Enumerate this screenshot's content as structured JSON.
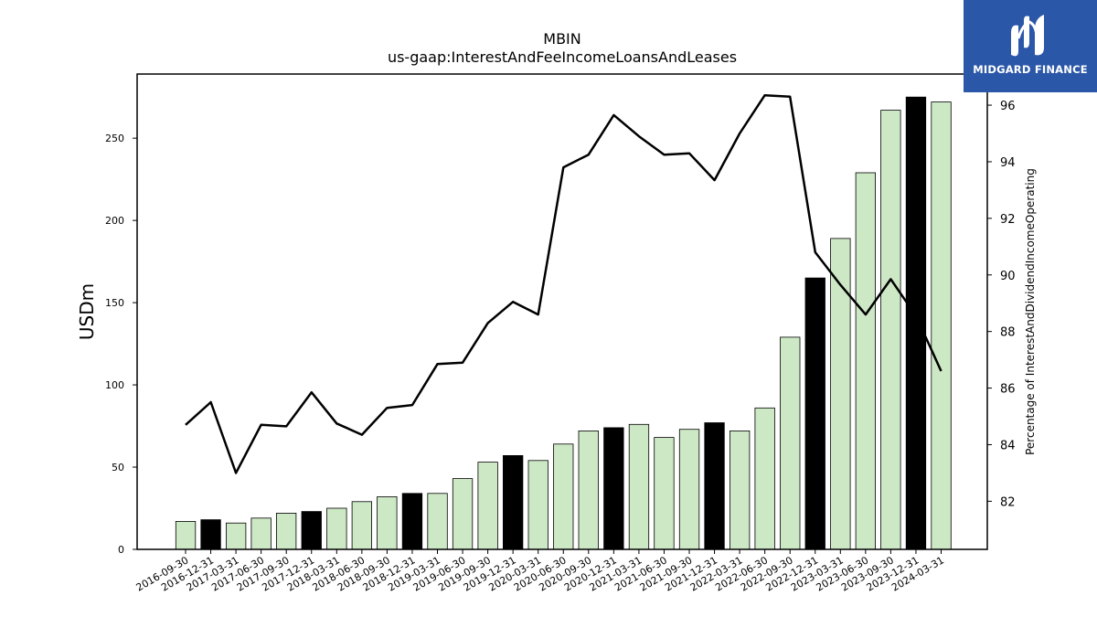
{
  "chart_data": {
    "type": "bar",
    "title": "MBIN",
    "subtitle": "us-gaap:InterestAndFeeIncomeLoansAndLeases",
    "ylabel": "USDm",
    "y2label": "Percentage of InterestAndDividendIncomeOperating",
    "ylim": [
      0,
      289
    ],
    "y2lim": [
      80.3,
      97.1
    ],
    "yticks": [
      0,
      50,
      100,
      150,
      200,
      250
    ],
    "y2ticks": [
      82,
      84,
      86,
      88,
      90,
      92,
      94,
      96
    ],
    "grid": false,
    "categories": [
      "2016-09-30",
      "2016-12-31",
      "2017-03-31",
      "2017-06-30",
      "2017-09-30",
      "2017-12-31",
      "2018-03-31",
      "2018-06-30",
      "2018-09-30",
      "2018-12-31",
      "2019-03-31",
      "2019-06-30",
      "2019-09-30",
      "2019-12-31",
      "2020-03-31",
      "2020-06-30",
      "2020-09-30",
      "2020-12-31",
      "2021-03-31",
      "2021-06-30",
      "2021-09-30",
      "2021-12-31",
      "2022-03-31",
      "2022-06-30",
      "2022-09-30",
      "2022-12-31",
      "2023-03-31",
      "2023-06-30",
      "2023-09-30",
      "2023-12-31",
      "2024-03-31"
    ],
    "series": [
      {
        "kind": "bar",
        "values": [
          17,
          18,
          16,
          19,
          22,
          23,
          25,
          29,
          32,
          34,
          34,
          43,
          53,
          57,
          54,
          64,
          72,
          74,
          76,
          68,
          73,
          77,
          72,
          86,
          129,
          165,
          189,
          229,
          267,
          275,
          272
        ],
        "colors": [
          "#cde8c5",
          "#000000",
          "#cde8c5",
          "#cde8c5",
          "#cde8c5",
          "#000000",
          "#cde8c5",
          "#cde8c5",
          "#cde8c5",
          "#000000",
          "#cde8c5",
          "#cde8c5",
          "#cde8c5",
          "#000000",
          "#cde8c5",
          "#cde8c5",
          "#cde8c5",
          "#000000",
          "#cde8c5",
          "#cde8c5",
          "#cde8c5",
          "#000000",
          "#cde8c5",
          "#cde8c5",
          "#cde8c5",
          "#000000",
          "#cde8c5",
          "#cde8c5",
          "#cde8c5",
          "#000000",
          "#cde8c5"
        ]
      },
      {
        "kind": "line",
        "axis": "right",
        "color": "#000000",
        "values": [
          84.7,
          85.5,
          83.0,
          84.7,
          84.65,
          85.85,
          84.75,
          84.35,
          85.3,
          85.4,
          86.85,
          86.9,
          88.3,
          89.05,
          88.6,
          93.8,
          94.25,
          95.65,
          94.9,
          94.25,
          94.3,
          93.35,
          95.0,
          96.35,
          96.3,
          90.8,
          89.65,
          88.6,
          89.85,
          88.55,
          86.6
        ]
      }
    ]
  },
  "logo": {
    "text": "MIDGARD FINANCE",
    "bg": "#2b57a8"
  }
}
